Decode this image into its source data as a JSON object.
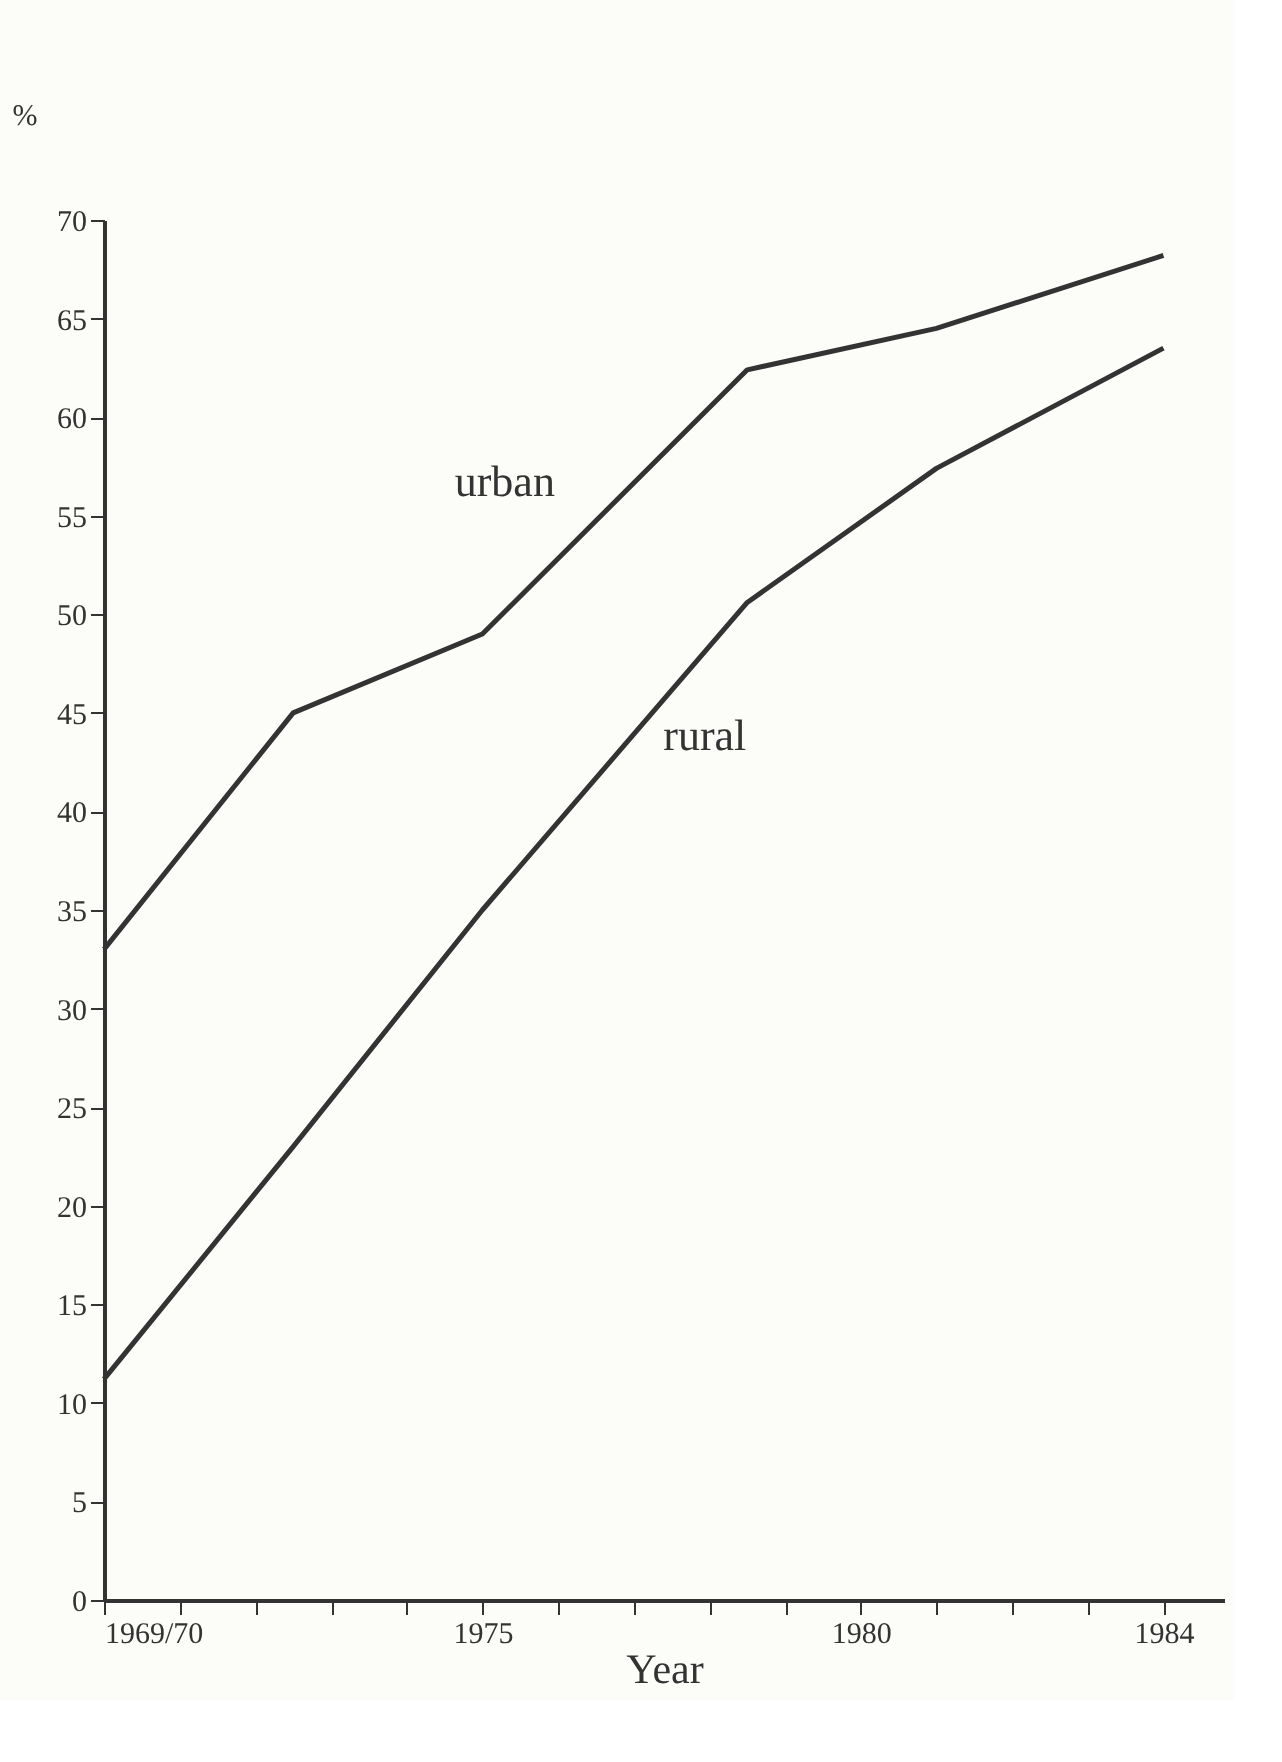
{
  "chart_data": {
    "type": "line",
    "xlabel": "Year",
    "ylabel": "%",
    "xlim": [
      1970,
      1984.8
    ],
    "xticks": [
      {
        "value": 1970,
        "label": "1969/70"
      },
      {
        "value": 1971,
        "label": null
      },
      {
        "value": 1972,
        "label": null
      },
      {
        "value": 1973,
        "label": null
      },
      {
        "value": 1974,
        "label": null
      },
      1975,
      {
        "value": 1976,
        "label": null
      },
      {
        "value": 1977,
        "label": null
      },
      {
        "value": 1978,
        "label": null
      },
      {
        "value": 1979,
        "label": null
      },
      1980,
      {
        "value": 1981,
        "label": null
      },
      {
        "value": 1982,
        "label": null
      },
      {
        "value": 1983,
        "label": null
      },
      1984
    ],
    "ylim": [
      0,
      70
    ],
    "yticks": [
      0,
      5,
      10,
      15,
      20,
      25,
      30,
      35,
      40,
      45,
      50,
      55,
      60,
      65,
      70
    ],
    "grid": false,
    "legend": false,
    "marker": "none",
    "line_style": "solid",
    "series": [
      {
        "name": "urban",
        "color": "#333333",
        "x": [
          1970,
          1972.5,
          1975,
          1978.5,
          1981,
          1984
        ],
        "values": [
          33,
          45,
          49,
          62.4,
          64.5,
          68.2
        ]
      },
      {
        "name": "rural",
        "color": "#333333",
        "x": [
          1970,
          1972.5,
          1975,
          1978.5,
          1981,
          1984
        ],
        "values": [
          11.2,
          23,
          35,
          50.6,
          57.4,
          63.5
        ]
      }
    ]
  }
}
